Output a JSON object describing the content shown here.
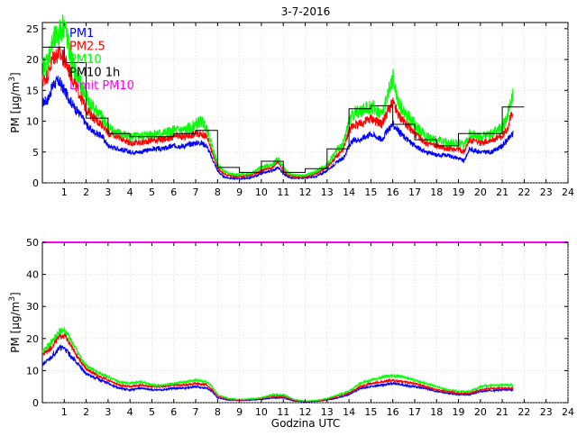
{
  "chart_data": [
    {
      "type": "line",
      "title": "3-7-2016",
      "xlabel": "",
      "ylabel_main": "PM [µg/m",
      "ylabel_sup": "3",
      "ylabel_tail": "]",
      "xlim": [
        0,
        24
      ],
      "ylim": [
        0,
        26
      ],
      "xticks": [
        1,
        2,
        3,
        4,
        5,
        6,
        7,
        8,
        9,
        10,
        11,
        12,
        13,
        14,
        15,
        16,
        17,
        18,
        19,
        20,
        21,
        22,
        23,
        24
      ],
      "yticks": [
        0,
        5,
        10,
        15,
        20,
        25
      ],
      "legend": [
        {
          "label": "PM1",
          "color": "#0000ff"
        },
        {
          "label": "PM2.5",
          "color": "#ff0000"
        },
        {
          "label": "PM10",
          "color": "#00ff00"
        },
        {
          "label": "PM10 1h",
          "color": "#000000"
        },
        {
          "label": "Limit PM10",
          "color": "#ff00ff"
        }
      ],
      "legend_position": "top-left",
      "series": [
        {
          "name": "PM1",
          "color": "#0000ff",
          "x": [
            0.0,
            0.25,
            0.5,
            0.75,
            1.0,
            1.25,
            1.5,
            1.75,
            2.0,
            2.25,
            2.5,
            2.75,
            3.0,
            3.5,
            4.0,
            4.5,
            5.0,
            5.5,
            6.0,
            6.5,
            7.0,
            7.25,
            7.5,
            7.75,
            8.0,
            8.25,
            8.5,
            9.0,
            9.5,
            10.0,
            10.5,
            10.75,
            11.0,
            11.25,
            11.5,
            12.0,
            12.5,
            13.0,
            13.5,
            13.75,
            14.0,
            14.25,
            14.5,
            15.0,
            15.5,
            15.75,
            16.0,
            16.25,
            16.5,
            17.0,
            17.5,
            18.0,
            18.5,
            19.0,
            19.25,
            19.5,
            20.0,
            20.5,
            21.0,
            21.25,
            21.5
          ],
          "y": [
            13,
            13.5,
            16,
            16.5,
            15,
            13.5,
            12,
            11,
            9.5,
            8.5,
            8,
            7.5,
            6,
            5.5,
            5,
            5,
            5.5,
            5.5,
            6,
            6,
            6.5,
            6.5,
            6,
            4,
            2,
            1,
            0.8,
            0.7,
            0.8,
            1.5,
            2,
            2.5,
            1.5,
            0.9,
            0.8,
            0.8,
            1,
            2,
            3.5,
            4,
            6,
            7,
            7,
            8,
            7,
            8.5,
            9.5,
            8.5,
            7.5,
            6,
            5,
            4.5,
            4.5,
            4,
            3.5,
            5.5,
            5,
            5,
            6,
            7,
            8
          ]
        },
        {
          "name": "PM2.5",
          "color": "#ff0000",
          "x": [
            0.0,
            0.25,
            0.5,
            0.75,
            1.0,
            1.25,
            1.5,
            1.75,
            2.0,
            2.25,
            2.5,
            2.75,
            3.0,
            3.5,
            4.0,
            4.5,
            5.0,
            5.5,
            6.0,
            6.5,
            7.0,
            7.25,
            7.5,
            7.75,
            8.0,
            8.25,
            8.5,
            9.0,
            9.5,
            10.0,
            10.5,
            10.75,
            11.0,
            11.25,
            11.5,
            12.0,
            12.5,
            13.0,
            13.5,
            13.75,
            14.0,
            14.25,
            14.5,
            15.0,
            15.5,
            15.75,
            16.0,
            16.25,
            16.5,
            17.0,
            17.5,
            18.0,
            18.5,
            19.0,
            19.25,
            19.5,
            20.0,
            20.5,
            21.0,
            21.25,
            21.5
          ],
          "y": [
            16.5,
            17.5,
            20.5,
            21,
            20,
            18,
            16,
            14,
            12,
            11,
            10,
            9.5,
            8,
            7.5,
            6.5,
            6.5,
            7,
            7,
            7.5,
            7.5,
            8,
            8,
            7.5,
            5,
            2.5,
            1.5,
            1.2,
            1,
            1.2,
            2,
            2.5,
            3.5,
            2,
            1.2,
            1,
            1,
            1.5,
            2.5,
            4.5,
            5.5,
            8.5,
            9.5,
            9.5,
            10.5,
            9.5,
            11.5,
            13,
            11,
            10,
            8,
            6.5,
            6,
            5.5,
            5.5,
            5,
            7,
            6.5,
            7,
            7.5,
            9,
            12
          ]
        },
        {
          "name": "PM10",
          "color": "#00ff00",
          "x": [
            0.0,
            0.25,
            0.5,
            0.75,
            1.0,
            1.25,
            1.5,
            1.75,
            2.0,
            2.25,
            2.5,
            2.75,
            3.0,
            3.5,
            4.0,
            4.5,
            5.0,
            5.5,
            6.0,
            6.5,
            7.0,
            7.25,
            7.5,
            7.75,
            8.0,
            8.25,
            8.5,
            9.0,
            9.5,
            10.0,
            10.5,
            10.75,
            11.0,
            11.25,
            11.5,
            12.0,
            12.5,
            13.0,
            13.5,
            13.75,
            14.0,
            14.25,
            14.5,
            15.0,
            15.5,
            15.75,
            16.0,
            16.25,
            16.5,
            17.0,
            17.5,
            18.0,
            18.5,
            19.0,
            19.25,
            19.5,
            20.0,
            20.5,
            21.0,
            21.25,
            21.5
          ],
          "y": [
            18.5,
            20,
            23,
            24,
            26,
            21,
            18,
            16,
            14,
            12.5,
            11.5,
            10.5,
            9,
            8,
            7.5,
            7.5,
            8,
            8,
            8.5,
            8.5,
            9.5,
            10,
            9,
            6,
            3,
            2,
            1.5,
            1.3,
            1.5,
            2.5,
            3,
            4,
            2.5,
            1.5,
            1.2,
            1.2,
            1.8,
            3,
            5.5,
            6.5,
            10,
            11.5,
            11.5,
            12.5,
            11,
            14,
            17,
            13,
            11.5,
            9.5,
            7.5,
            7,
            6.5,
            6.5,
            6,
            8,
            7.5,
            8,
            9,
            11,
            15
          ]
        },
        {
          "name": "PM10 1h",
          "color": "#000000",
          "step": true,
          "x": [
            0,
            1,
            2,
            3,
            4,
            5,
            6,
            7,
            8,
            9,
            10,
            11,
            12,
            13,
            14,
            15,
            16,
            17,
            18,
            19,
            20,
            21,
            22
          ],
          "y": [
            22,
            19.5,
            10.5,
            8,
            7.5,
            7.5,
            8,
            8.5,
            2.5,
            1.7,
            3.5,
            1.7,
            2.3,
            5.5,
            12,
            12.5,
            9.5,
            7,
            6,
            8,
            8,
            12.3,
            12.3
          ]
        }
      ]
    },
    {
      "type": "line",
      "title": "",
      "xlabel": "Godzina UTC",
      "ylabel_main": "PM [µg/m",
      "ylabel_sup": "3",
      "ylabel_tail": "]",
      "xlim": [
        0,
        24
      ],
      "ylim": [
        0,
        50
      ],
      "xticks": [
        1,
        2,
        3,
        4,
        5,
        6,
        7,
        8,
        9,
        10,
        11,
        12,
        13,
        14,
        15,
        16,
        17,
        18,
        19,
        20,
        21,
        22,
        23,
        24
      ],
      "yticks": [
        0,
        10,
        20,
        30,
        40,
        50
      ],
      "series": [
        {
          "name": "PM1",
          "color": "#0000ff",
          "x": [
            0.0,
            0.25,
            0.5,
            0.75,
            1.0,
            1.25,
            1.5,
            1.75,
            2.0,
            2.5,
            3.0,
            3.5,
            4.0,
            4.5,
            5.0,
            5.5,
            6.0,
            6.5,
            7.0,
            7.5,
            7.75,
            8.0,
            8.5,
            9.0,
            9.5,
            10.0,
            10.5,
            11.0,
            11.5,
            12.0,
            12.5,
            13.0,
            13.5,
            14.0,
            14.5,
            15.0,
            15.5,
            16.0,
            16.5,
            17.0,
            17.5,
            18.0,
            18.5,
            19.0,
            19.5,
            20.0,
            20.5,
            21.0,
            21.5
          ],
          "y": [
            12,
            13,
            15,
            17,
            17,
            15,
            13,
            11,
            9,
            7.5,
            6,
            4.5,
            4,
            4.5,
            4,
            4,
            4.5,
            4.5,
            5,
            4.5,
            3.5,
            1.5,
            0.8,
            0.7,
            0.8,
            1,
            1.5,
            1.5,
            0.5,
            0.3,
            0.4,
            0.8,
            1.5,
            2.5,
            4.5,
            5,
            5.5,
            6,
            5.5,
            5,
            4.5,
            3.5,
            3,
            2.5,
            2.5,
            3.5,
            3.8,
            4,
            4
          ]
        },
        {
          "name": "PM2.5",
          "color": "#ff0000",
          "x": [
            0.0,
            0.25,
            0.5,
            0.75,
            1.0,
            1.25,
            1.5,
            1.75,
            2.0,
            2.5,
            3.0,
            3.5,
            4.0,
            4.5,
            5.0,
            5.5,
            6.0,
            6.5,
            7.0,
            7.5,
            7.75,
            8.0,
            8.5,
            9.0,
            9.5,
            10.0,
            10.5,
            11.0,
            11.5,
            12.0,
            12.5,
            13.0,
            13.5,
            14.0,
            14.5,
            15.0,
            15.5,
            16.0,
            16.5,
            17.0,
            17.5,
            18.0,
            18.5,
            19.0,
            19.5,
            20.0,
            20.5,
            21.0,
            21.5
          ],
          "y": [
            15,
            16,
            18,
            20.5,
            21,
            18.5,
            15.5,
            13,
            10.5,
            8.5,
            7,
            5.5,
            5,
            5.5,
            5,
            5,
            5.5,
            5.5,
            6,
            5.5,
            4,
            2,
            1,
            0.8,
            1,
            1.3,
            2,
            2,
            0.7,
            0.4,
            0.5,
            1,
            2,
            3,
            5,
            6,
            6.5,
            7,
            6.5,
            6,
            5,
            4,
            3.5,
            3,
            3,
            4,
            4.5,
            4.5,
            4.5
          ]
        },
        {
          "name": "PM10",
          "color": "#00ff00",
          "x": [
            0.0,
            0.25,
            0.5,
            0.75,
            1.0,
            1.25,
            1.5,
            1.75,
            2.0,
            2.5,
            3.0,
            3.5,
            4.0,
            4.5,
            5.0,
            5.5,
            6.0,
            6.5,
            7.0,
            7.5,
            7.75,
            8.0,
            8.5,
            9.0,
            9.5,
            10.0,
            10.5,
            11.0,
            11.5,
            12.0,
            12.5,
            13.0,
            13.5,
            14.0,
            14.5,
            15.0,
            15.5,
            16.0,
            16.5,
            17.0,
            17.5,
            18.0,
            18.5,
            19.0,
            19.5,
            20.0,
            20.5,
            21.0,
            21.5
          ],
          "y": [
            16,
            17.5,
            19.5,
            22,
            22.5,
            20,
            17,
            14,
            11.5,
            9.5,
            8,
            6.5,
            6,
            6.5,
            5.5,
            5.5,
            6,
            6.5,
            7,
            6.5,
            5,
            2.5,
            1.3,
            1,
            1.2,
            1.5,
            2.5,
            2.5,
            1,
            0.5,
            0.7,
            1.3,
            2.5,
            3.5,
            6,
            7,
            8,
            8.5,
            8,
            7,
            6,
            5,
            4,
            3.5,
            3.5,
            5,
            5.5,
            5.5,
            5.5
          ]
        },
        {
          "name": "Limit PM10",
          "color": "#ff00ff",
          "x": [
            0,
            24
          ],
          "y": [
            50,
            50
          ]
        }
      ]
    }
  ]
}
